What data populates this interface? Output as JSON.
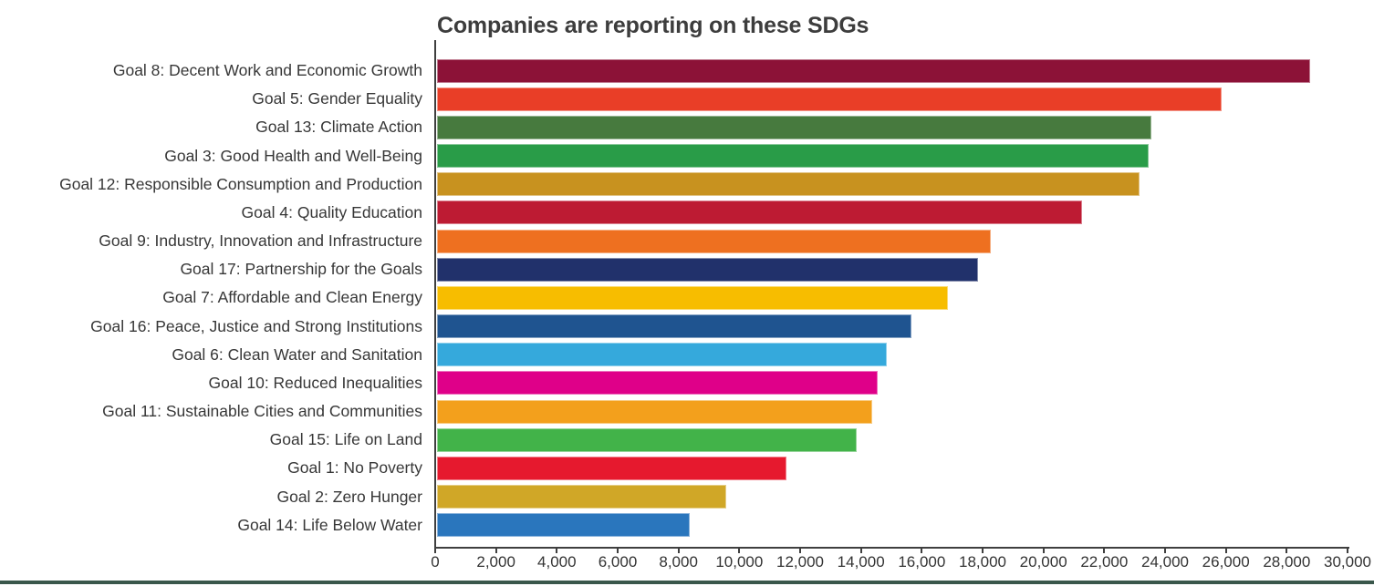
{
  "chart_data": {
    "type": "bar",
    "orientation": "horizontal",
    "title": "Companies are reporting on these SDGs",
    "categories": [
      "Goal 8: Decent Work and Economic Growth",
      "Goal 5: Gender Equality",
      "Goal 13: Climate Action",
      "Goal 3: Good Health and Well-Being",
      "Goal 12: Responsible Consumption and Production",
      "Goal 4: Quality Education",
      "Goal 9: Industry, Innovation and Infrastructure",
      "Goal 17: Partnership for the Goals",
      "Goal 7: Affordable and Clean Energy",
      "Goal 16: Peace, Justice and Strong Institutions",
      "Goal 6: Clean Water and Sanitation",
      "Goal 10: Reduced Inequalities",
      "Goal 11: Sustainable Cities and Communities",
      "Goal 15: Life on Land",
      "Goal 1: No Poverty",
      "Goal 2: Zero Hunger",
      "Goal 14: Life Below Water"
    ],
    "values": [
      28700,
      25800,
      23500,
      23400,
      23100,
      21200,
      18200,
      17800,
      16800,
      15600,
      14800,
      14500,
      14300,
      13800,
      11500,
      9500,
      8300
    ],
    "colors": [
      "#8C1237",
      "#E93E27",
      "#477A3E",
      "#299C48",
      "#C8921F",
      "#BD1B33",
      "#EE7020",
      "#21316B",
      "#F7BD00",
      "#1F5490",
      "#35A9DC",
      "#DF0089",
      "#F3A01C",
      "#42B349",
      "#E6192E",
      "#D0A727",
      "#2A76BD"
    ],
    "xlabel": "",
    "ylabel": "",
    "xlim": [
      0,
      30000
    ],
    "x_ticks": [
      0,
      2000,
      4000,
      6000,
      8000,
      10000,
      12000,
      14000,
      16000,
      18000,
      20000,
      22000,
      24000,
      26000,
      28000,
      30000
    ],
    "x_tick_labels": [
      "0",
      "2,000",
      "4,000",
      "6,000",
      "8,000",
      "10,000",
      "12,000",
      "14,000",
      "16,000",
      "18,000",
      "20,000",
      "22,000",
      "24,000",
      "26,000",
      "28,000",
      "30,000"
    ],
    "grid": false,
    "legend": false,
    "axis_color": "#3f3f3f",
    "label_color": "#373737",
    "title_color": "#3d3d3d"
  },
  "decor": {
    "bottom_strip_color": "#3a574b"
  }
}
